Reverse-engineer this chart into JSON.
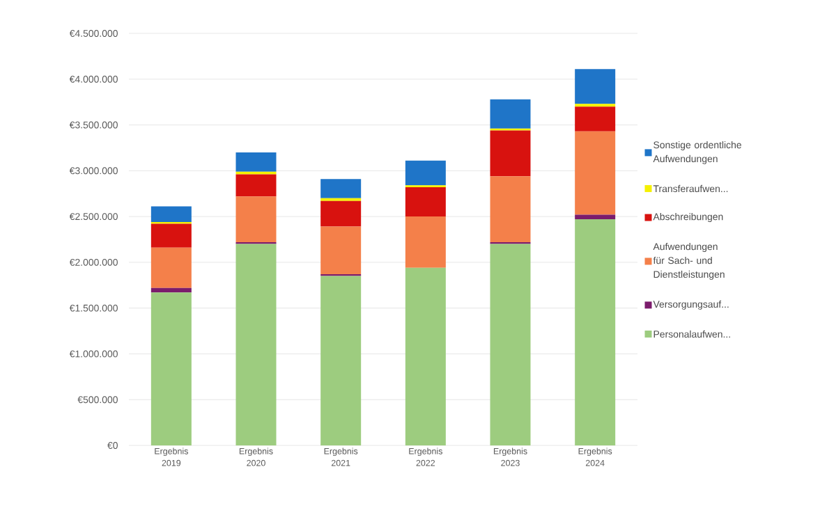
{
  "chart_data": {
    "type": "bar",
    "stacked": true,
    "categories": [
      "Ergebnis 2019",
      "Ergebnis 2020",
      "Ergebnis 2021",
      "Ergebnis 2022",
      "Ergebnis 2023",
      "Ergebnis 2024"
    ],
    "series": [
      {
        "name": "Personalaufwen...",
        "color": "#9dcc7f",
        "values": [
          1670000,
          2200000,
          1850000,
          1940000,
          2200000,
          2470000
        ]
      },
      {
        "name": "Versorgungsauf...",
        "color": "#7b1c6c",
        "values": [
          50000,
          20000,
          20000,
          0,
          20000,
          50000
        ]
      },
      {
        "name": "Aufwendungen für Sach- und Dienstleistungen",
        "color": "#f4804a",
        "values": [
          440000,
          500000,
          520000,
          560000,
          720000,
          910000
        ]
      },
      {
        "name": "Abschreibungen",
        "color": "#d8120f",
        "values": [
          260000,
          240000,
          280000,
          320000,
          500000,
          270000
        ]
      },
      {
        "name": "Transferaufwen...",
        "color": "#f5f000",
        "values": [
          20000,
          30000,
          30000,
          20000,
          20000,
          30000
        ]
      },
      {
        "name": "Sonstige ordentliche Aufwendungen",
        "color": "#1f75c8",
        "values": [
          170000,
          210000,
          210000,
          270000,
          320000,
          380000
        ]
      }
    ],
    "ylim": [
      0,
      4500000
    ],
    "yticks": [
      {
        "value": 0,
        "label": "€0"
      },
      {
        "value": 500000,
        "label": "€500.000"
      },
      {
        "value": 1000000,
        "label": "€1.000.000"
      },
      {
        "value": 1500000,
        "label": "€1.500.000"
      },
      {
        "value": 2000000,
        "label": "€2.000.000"
      },
      {
        "value": 2500000,
        "label": "€2.500.000"
      },
      {
        "value": 3000000,
        "label": "€3.000.000"
      },
      {
        "value": 3500000,
        "label": "€3.500.000"
      },
      {
        "value": 4000000,
        "label": "€4.000.000"
      },
      {
        "value": 4500000,
        "label": "€4.500.000"
      }
    ],
    "grid": "y",
    "legend": "right"
  }
}
